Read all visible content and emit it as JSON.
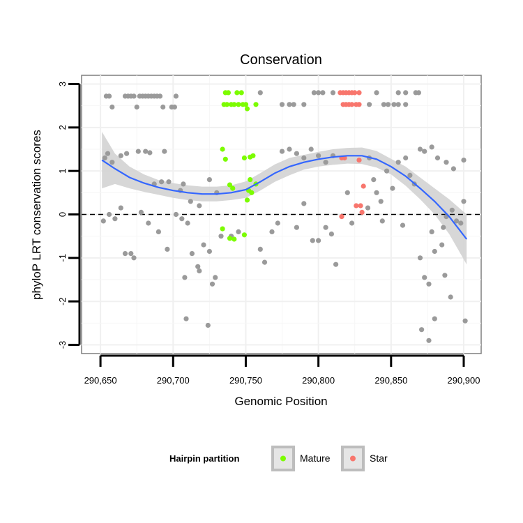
{
  "chart_data": {
    "type": "scatter",
    "title": "Conservation",
    "xlabel": "Genomic Position",
    "ylabel": "phyloP LRT conservation scores",
    "xlim": [
      290637,
      290912
    ],
    "ylim": [
      -3.2,
      3.2
    ],
    "x_ticks": [
      290650,
      290700,
      290750,
      290800,
      290850,
      290900
    ],
    "x_tick_labels": [
      "290,650",
      "290,700",
      "290,750",
      "290,800",
      "290,850",
      "290,900"
    ],
    "y_ticks": [
      -3,
      -2,
      -1,
      0,
      1,
      2,
      3
    ],
    "y_tick_labels": [
      "-3",
      "-2",
      "-1",
      "0",
      "1",
      "2",
      "3"
    ],
    "grid": true,
    "reference_line": {
      "y": 0,
      "style": "dashed"
    },
    "legend": {
      "title": "Hairpin partition",
      "position": "bottom",
      "entries": [
        {
          "label": "Mature",
          "color": "#7CFC00"
        },
        {
          "label": "Star",
          "color": "#F8766D"
        }
      ]
    },
    "colors": {
      "other": "#9A9A9A",
      "Mature": "#7CFC00",
      "Star": "#F8766D",
      "smooth": "#3366FF",
      "band": "#D3D3D3"
    },
    "series": [
      {
        "name": "other",
        "points": [
          [
            290654,
            2.72
          ],
          [
            290656,
            2.72
          ],
          [
            290658,
            2.47
          ],
          [
            290667,
            2.72
          ],
          [
            290669,
            2.72
          ],
          [
            290671,
            2.72
          ],
          [
            290673,
            2.72
          ],
          [
            290675,
            2.47
          ],
          [
            290677,
            2.72
          ],
          [
            290679,
            2.72
          ],
          [
            290681,
            2.72
          ],
          [
            290683,
            2.72
          ],
          [
            290685,
            2.72
          ],
          [
            290687,
            2.72
          ],
          [
            290689,
            2.72
          ],
          [
            290691,
            2.72
          ],
          [
            290693,
            2.47
          ],
          [
            290699,
            2.47
          ],
          [
            290701,
            2.47
          ],
          [
            290702,
            2.72
          ],
          [
            290760,
            2.8
          ],
          [
            290775,
            2.53
          ],
          [
            290780,
            2.53
          ],
          [
            290783,
            2.53
          ],
          [
            290790,
            2.53
          ],
          [
            290797,
            2.8
          ],
          [
            290800,
            2.8
          ],
          [
            290803,
            2.8
          ],
          [
            290810,
            2.8
          ],
          [
            290835,
            2.53
          ],
          [
            290840,
            2.8
          ],
          [
            290845,
            2.53
          ],
          [
            290848,
            2.53
          ],
          [
            290852,
            2.53
          ],
          [
            290855,
            2.53
          ],
          [
            290855,
            2.8
          ],
          [
            290860,
            2.53
          ],
          [
            290860,
            2.8
          ],
          [
            290867,
            2.8
          ],
          [
            290869,
            2.8
          ],
          [
            290653,
            1.3
          ],
          [
            290655,
            1.4
          ],
          [
            290658,
            1.2
          ],
          [
            290664,
            1.35
          ],
          [
            290668,
            1.4
          ],
          [
            290676,
            1.45
          ],
          [
            290681,
            1.45
          ],
          [
            290684,
            1.42
          ],
          [
            290694,
            1.45
          ],
          [
            290687,
            0.7
          ],
          [
            290692,
            0.75
          ],
          [
            290697,
            0.75
          ],
          [
            290707,
            0.7
          ],
          [
            290705,
            0.55
          ],
          [
            290712,
            0.3
          ],
          [
            290718,
            0.2
          ],
          [
            290725,
            0.8
          ],
          [
            290730,
            0.5
          ],
          [
            290775,
            1.45
          ],
          [
            290780,
            1.5
          ],
          [
            290785,
            1.4
          ],
          [
            290790,
            1.3
          ],
          [
            290795,
            1.5
          ],
          [
            290800,
            1.35
          ],
          [
            290805,
            1.2
          ],
          [
            290810,
            1.35
          ],
          [
            290835,
            1.3
          ],
          [
            290838,
            0.8
          ],
          [
            290840,
            0.5
          ],
          [
            290843,
            0.3
          ],
          [
            290847,
            1.0
          ],
          [
            290851,
            0.6
          ],
          [
            290855,
            1.2
          ],
          [
            290860,
            1.3
          ],
          [
            290863,
            0.9
          ],
          [
            290866,
            0.7
          ],
          [
            290870,
            1.5
          ],
          [
            290873,
            1.45
          ],
          [
            290878,
            1.55
          ],
          [
            290882,
            1.3
          ],
          [
            290888,
            1.2
          ],
          [
            290893,
            1.05
          ],
          [
            290900,
            1.25
          ],
          [
            290652,
            -0.15
          ],
          [
            290656,
            0.0
          ],
          [
            290660,
            -0.1
          ],
          [
            290664,
            0.15
          ],
          [
            290667,
            -0.9
          ],
          [
            290671,
            -0.9
          ],
          [
            290673,
            -1.0
          ],
          [
            290678,
            0.05
          ],
          [
            290683,
            -0.2
          ],
          [
            290690,
            -0.4
          ],
          [
            290696,
            -0.8
          ],
          [
            290702,
            0.0
          ],
          [
            290706,
            -0.1
          ],
          [
            290708,
            -1.45
          ],
          [
            290710,
            -0.2
          ],
          [
            290713,
            -0.9
          ],
          [
            290717,
            -1.2
          ],
          [
            290718,
            -1.3
          ],
          [
            290721,
            -0.7
          ],
          [
            290725,
            -0.85
          ],
          [
            290727,
            -1.6
          ],
          [
            290729,
            -1.45
          ],
          [
            290733,
            -0.5
          ],
          [
            290740,
            -0.5
          ],
          [
            290745,
            -0.4
          ],
          [
            290760,
            -0.8
          ],
          [
            290763,
            -1.1
          ],
          [
            290768,
            -0.4
          ],
          [
            290772,
            -0.2
          ],
          [
            290785,
            -0.3
          ],
          [
            290790,
            0.25
          ],
          [
            290796,
            -0.6
          ],
          [
            290800,
            -0.6
          ],
          [
            290805,
            -0.3
          ],
          [
            290809,
            -0.45
          ],
          [
            290812,
            -1.15
          ],
          [
            290820,
            0.5
          ],
          [
            290823,
            -0.2
          ],
          [
            290834,
            0.15
          ],
          [
            290844,
            -0.15
          ],
          [
            290858,
            -0.25
          ],
          [
            290870,
            -1.0
          ],
          [
            290873,
            -1.45
          ],
          [
            290876,
            -1.6
          ],
          [
            290878,
            -0.4
          ],
          [
            290880,
            -0.85
          ],
          [
            290885,
            -0.7
          ],
          [
            290886,
            -0.3
          ],
          [
            290888,
            -0.05
          ],
          [
            290892,
            0.1
          ],
          [
            290895,
            -0.15
          ],
          [
            290898,
            -0.2
          ],
          [
            290900,
            0.3
          ],
          [
            290709,
            -2.4
          ],
          [
            290724,
            -2.55
          ],
          [
            290871,
            -2.65
          ],
          [
            290876,
            -2.9
          ],
          [
            290880,
            -2.4
          ],
          [
            290887,
            -1.4
          ],
          [
            290891,
            -1.9
          ],
          [
            290901,
            -2.45
          ]
        ]
      },
      {
        "name": "Mature",
        "points": [
          [
            290736,
            2.8
          ],
          [
            290738,
            2.8
          ],
          [
            290744,
            2.8
          ],
          [
            290747,
            2.8
          ],
          [
            290735,
            2.53
          ],
          [
            290737,
            2.53
          ],
          [
            290740,
            2.53
          ],
          [
            290742,
            2.53
          ],
          [
            290745,
            2.53
          ],
          [
            290748,
            2.53
          ],
          [
            290750,
            2.53
          ],
          [
            290757,
            2.53
          ],
          [
            290751,
            2.43
          ],
          [
            290734,
            1.5
          ],
          [
            290736,
            1.27
          ],
          [
            290753,
            1.32
          ],
          [
            290755,
            1.35
          ],
          [
            290749,
            1.3
          ],
          [
            290739,
            0.68
          ],
          [
            290741,
            0.6
          ],
          [
            290753,
            0.8
          ],
          [
            290757,
            0.7
          ],
          [
            290752,
            0.55
          ],
          [
            290754,
            0.5
          ],
          [
            290751,
            0.33
          ],
          [
            290734,
            -0.33
          ],
          [
            290739,
            -0.55
          ],
          [
            290742,
            -0.57
          ],
          [
            290749,
            -0.47
          ]
        ]
      },
      {
        "name": "Star",
        "points": [
          [
            290815,
            2.8
          ],
          [
            290817,
            2.8
          ],
          [
            290819,
            2.8
          ],
          [
            290821,
            2.8
          ],
          [
            290823,
            2.8
          ],
          [
            290825,
            2.8
          ],
          [
            290828,
            2.8
          ],
          [
            290817,
            2.53
          ],
          [
            290819,
            2.53
          ],
          [
            290821,
            2.53
          ],
          [
            290823,
            2.53
          ],
          [
            290826,
            2.53
          ],
          [
            290828,
            2.53
          ],
          [
            290816,
            1.3
          ],
          [
            290818,
            1.3
          ],
          [
            290828,
            1.25
          ],
          [
            290831,
            0.65
          ],
          [
            290826,
            0.2
          ],
          [
            290829,
            0.2
          ],
          [
            290816,
            -0.05
          ],
          [
            290830,
            0.05
          ]
        ]
      }
    ],
    "smooth_line": {
      "x": [
        290651,
        290660,
        290670,
        290680,
        290690,
        290700,
        290710,
        290720,
        290730,
        290740,
        290750,
        290760,
        290770,
        290780,
        290790,
        290800,
        290810,
        290820,
        290830,
        290840,
        290850,
        290860,
        290870,
        290880,
        290890,
        290902
      ],
      "y": [
        1.25,
        1.05,
        0.85,
        0.72,
        0.62,
        0.55,
        0.5,
        0.47,
        0.47,
        0.5,
        0.57,
        0.75,
        0.95,
        1.1,
        1.2,
        1.27,
        1.32,
        1.35,
        1.35,
        1.27,
        1.1,
        0.88,
        0.6,
        0.3,
        -0.05,
        -0.57
      ],
      "lower": [
        0.6,
        0.7,
        0.6,
        0.52,
        0.45,
        0.38,
        0.33,
        0.3,
        0.3,
        0.33,
        0.38,
        0.55,
        0.75,
        0.9,
        1.03,
        1.1,
        1.14,
        1.17,
        1.16,
        1.08,
        0.92,
        0.66,
        0.35,
        0.0,
        -0.45,
        -1.15
      ],
      "upper": [
        1.9,
        1.4,
        1.1,
        0.92,
        0.79,
        0.72,
        0.67,
        0.64,
        0.64,
        0.67,
        0.76,
        0.95,
        1.15,
        1.3,
        1.37,
        1.44,
        1.5,
        1.53,
        1.54,
        1.46,
        1.28,
        1.1,
        0.85,
        0.6,
        0.35,
        0.0
      ]
    }
  }
}
